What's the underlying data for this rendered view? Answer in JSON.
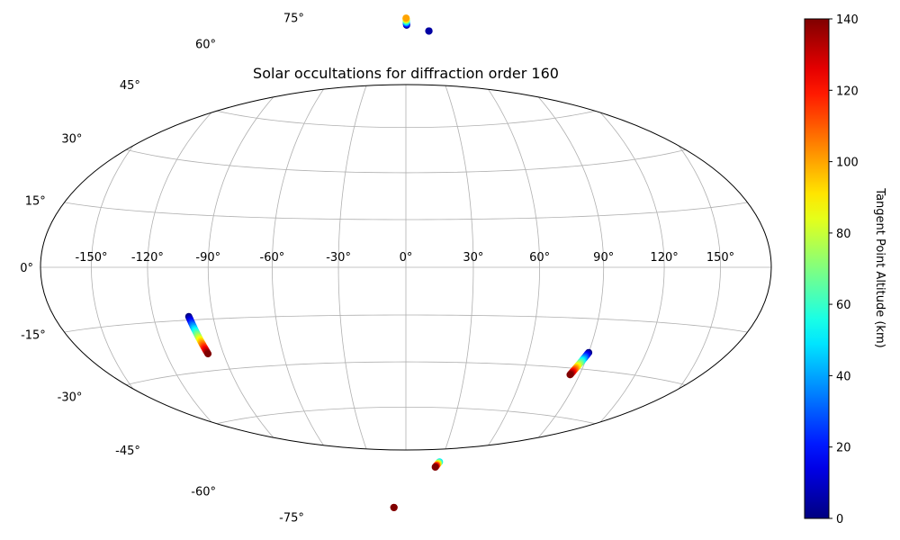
{
  "chart_data": {
    "type": "scatter",
    "projection": "hammer",
    "title": "Solar occultations for diffraction order 160",
    "grid": true,
    "longitude_ticks": [
      {
        "value": -150,
        "label": "-150°"
      },
      {
        "value": -120,
        "label": "-120°"
      },
      {
        "value": -90,
        "label": "-90°"
      },
      {
        "value": -60,
        "label": "-60°"
      },
      {
        "value": -30,
        "label": "-30°"
      },
      {
        "value": 0,
        "label": "0°"
      },
      {
        "value": 30,
        "label": "30°"
      },
      {
        "value": 60,
        "label": "60°"
      },
      {
        "value": 90,
        "label": "90°"
      },
      {
        "value": 120,
        "label": "120°"
      },
      {
        "value": 150,
        "label": "150°"
      }
    ],
    "latitude_ticks": [
      {
        "value": 75,
        "label": "75°"
      },
      {
        "value": 60,
        "label": "60°"
      },
      {
        "value": 45,
        "label": "45°"
      },
      {
        "value": 30,
        "label": "30°"
      },
      {
        "value": 15,
        "label": "15°"
      },
      {
        "value": 0,
        "label": "0°"
      },
      {
        "value": -15,
        "label": "-15°"
      },
      {
        "value": -30,
        "label": "-30°"
      },
      {
        "value": -45,
        "label": "-45°"
      },
      {
        "value": -60,
        "label": "-60°"
      },
      {
        "value": -75,
        "label": "-75°"
      }
    ],
    "colorbar": {
      "label": "Tangent Point Altitude (km)",
      "colormap": "jet",
      "range": [
        0,
        140
      ],
      "ticks": [
        {
          "value": 0,
          "label": "0"
        },
        {
          "value": 20,
          "label": "20"
        },
        {
          "value": 40,
          "label": "40"
        },
        {
          "value": 60,
          "label": "60"
        },
        {
          "value": 80,
          "label": "80"
        },
        {
          "value": 100,
          "label": "100"
        },
        {
          "value": 120,
          "label": "120"
        },
        {
          "value": 140,
          "label": "140"
        }
      ]
    },
    "tracks": [
      {
        "start": {
          "lon": 2,
          "lat": 83,
          "alt": 0
        },
        "end": {
          "lon": 1,
          "lat": 86,
          "alt": 100
        },
        "points": 12
      },
      {
        "start": {
          "lon": 46,
          "lat": 80,
          "alt": 0
        },
        "end": {
          "lon": 46,
          "lat": 80,
          "alt": 5
        },
        "points": 4
      },
      {
        "start": {
          "lon": -102,
          "lat": -14,
          "alt": 0
        },
        "end": {
          "lon": -98,
          "lat": -25,
          "alt": 140
        },
        "points": 30
      },
      {
        "start": {
          "lon": 90,
          "lat": -25,
          "alt": 0
        },
        "end": {
          "lon": 85,
          "lat": -32,
          "alt": 140
        },
        "points": 30
      },
      {
        "start": {
          "lon": 29,
          "lat": -64,
          "alt": 50
        },
        "end": {
          "lon": 27,
          "lat": -66,
          "alt": 140
        },
        "points": 10
      },
      {
        "start": {
          "lon": -29,
          "lat": -82,
          "alt": 135
        },
        "end": {
          "lon": -29,
          "lat": -82,
          "alt": 140
        },
        "points": 3
      }
    ]
  }
}
